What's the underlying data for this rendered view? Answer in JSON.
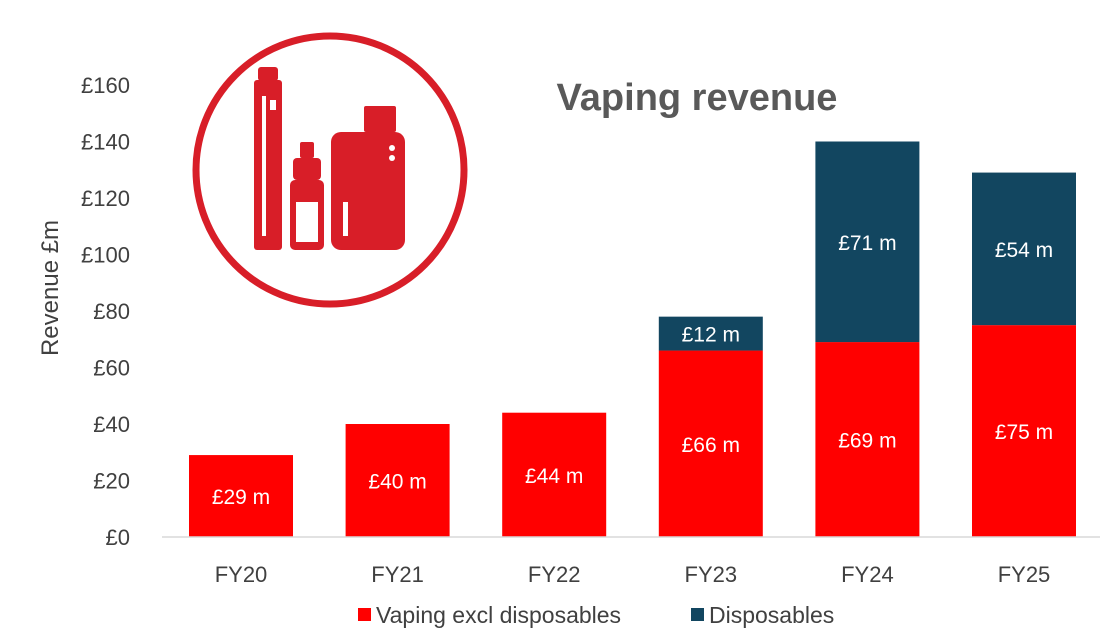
{
  "chart_data": {
    "type": "bar",
    "stacked": true,
    "title": "Vaping revenue",
    "ylabel": "Revenue £m",
    "xlabel": "",
    "ylim": [
      0,
      160
    ],
    "ytick_step": 20,
    "ytick_labels": [
      "£0",
      "£20",
      "£40",
      "£60",
      "£80",
      "£100",
      "£120",
      "£140",
      "£160"
    ],
    "categories": [
      "FY20",
      "FY21",
      "FY22",
      "FY23",
      "FY24",
      "FY25"
    ],
    "series": [
      {
        "name": "Vaping excl disposables",
        "color": "#ff0000",
        "values": [
          29,
          40,
          44,
          66,
          69,
          75
        ],
        "labels": [
          "£29 m",
          "£40 m",
          "£44 m",
          "£66 m",
          "£69 m",
          "£75 m"
        ]
      },
      {
        "name": "Disposables",
        "color": "#124660",
        "values": [
          0,
          0,
          0,
          12,
          71,
          54
        ],
        "labels": [
          "",
          "",
          "",
          "£12 m",
          "£71 m",
          "£54 m"
        ]
      }
    ],
    "grid": false,
    "legend": "bottom",
    "icon": "vape-devices-icon",
    "icon_color": "#d81e28"
  }
}
